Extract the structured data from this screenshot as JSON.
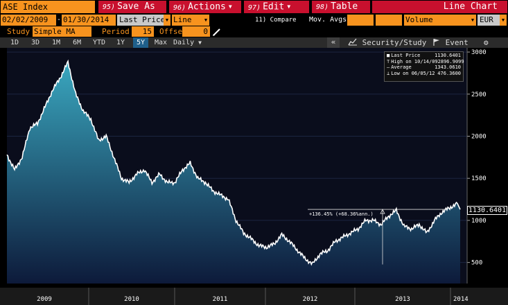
{
  "toolbar": {
    "ticker": "ASE Index",
    "save": {
      "num": "95)",
      "label": "Save As"
    },
    "actions": {
      "num": "96)",
      "label": "Actions"
    },
    "edit": {
      "num": "97)",
      "label": "Edit"
    },
    "table": {
      "num": "98)",
      "label": "Table"
    },
    "chart_type_title": "Line Chart"
  },
  "params": {
    "start_date": "02/02/2009",
    "end_date": "01/30/2014",
    "field": "Last Price",
    "style": "Line",
    "compare": "11) Compare",
    "mov_avgs": "Mov. Avgs",
    "lower": "Volume",
    "currency": "EUR"
  },
  "study": {
    "label": "Study",
    "type": "Simple MA",
    "period_label": "Period",
    "period": "15",
    "offset_label": "Offset",
    "offset": "0"
  },
  "timeframes": {
    "items": [
      "1D",
      "3D",
      "1M",
      "6M",
      "YTD",
      "1Y",
      "5Y",
      "Max"
    ],
    "active": "5Y",
    "frequency": "Daily"
  },
  "right_bar": {
    "collapse": "«",
    "security_study": "Security/Study",
    "event": "Event"
  },
  "legend": {
    "rows": [
      {
        "label": "Last Price",
        "value": "1130.6401"
      },
      {
        "label": "High on 10/14/09",
        "value": "2896.9099"
      },
      {
        "label": "Average",
        "value": "1343.0610"
      },
      {
        "label": "Low on 06/05/12",
        "value": "476.3600"
      }
    ]
  },
  "last_price_label": "1130.6401",
  "annotation": "+136.45% (+68.36%ann.)",
  "colors": {
    "orange": "#f7931e",
    "red": "#c8102e",
    "line": "#ffffff",
    "area_top": "#3aa8c0",
    "area_bottom": "#0d1a3a"
  },
  "chart_data": {
    "type": "area",
    "series": [
      {
        "x": [
          "2009-02",
          "2009-03",
          "2009-04",
          "2009-05",
          "2009-06",
          "2009-07",
          "2009-08",
          "2009-09",
          "2009-10",
          "2009-11",
          "2009-12",
          "2010-01",
          "2010-02",
          "2010-03",
          "2010-04",
          "2010-05",
          "2010-06",
          "2010-07",
          "2010-08",
          "2010-09",
          "2010-10",
          "2010-11",
          "2010-12",
          "2011-01",
          "2011-02",
          "2011-03",
          "2011-04",
          "2011-05",
          "2011-06",
          "2011-07",
          "2011-08",
          "2011-09",
          "2011-10",
          "2011-11",
          "2011-12",
          "2012-01",
          "2012-02",
          "2012-03",
          "2012-04",
          "2012-05",
          "2012-06",
          "2012-07",
          "2012-08",
          "2012-09",
          "2012-10",
          "2012-11",
          "2012-12",
          "2013-01",
          "2013-02",
          "2013-03",
          "2013-04",
          "2013-05",
          "2013-06",
          "2013-07",
          "2013-08",
          "2013-09",
          "2013-10",
          "2013-11",
          "2013-12",
          "2014-01"
        ],
        "values": [
          1780,
          1600,
          1750,
          2100,
          2150,
          2350,
          2550,
          2700,
          2880,
          2500,
          2300,
          2200,
          1950,
          2000,
          1750,
          1500,
          1450,
          1550,
          1600,
          1450,
          1550,
          1450,
          1450,
          1600,
          1680,
          1500,
          1450,
          1350,
          1300,
          1250,
          1000,
          850,
          780,
          700,
          680,
          720,
          830,
          750,
          650,
          550,
          480,
          600,
          640,
          750,
          800,
          850,
          900,
          1000,
          1000,
          950,
          1050,
          1120,
          930,
          900,
          950,
          850,
          1000,
          1100,
          1150,
          1200
        ]
      }
    ],
    "xlabels": [
      "2009",
      "2010",
      "2011",
      "2012",
      "2013",
      "2014"
    ],
    "yticks": [
      500,
      1000,
      1500,
      2000,
      2500,
      3000
    ],
    "ylim": [
      250,
      3050
    ],
    "last_value": 1130.6401,
    "reference_lines": [
      1130.6401,
      476.36
    ]
  }
}
